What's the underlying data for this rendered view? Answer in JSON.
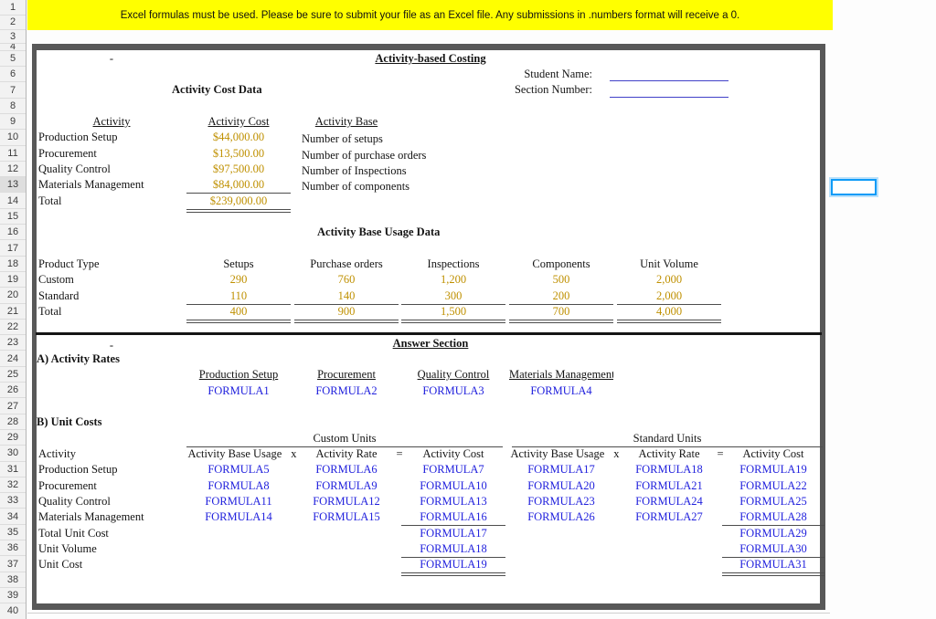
{
  "banner": {
    "text": "Excel formulas must be used. Please be sure to submit your file as an Excel file. Any submissions in .numbers format will receive a 0."
  },
  "row_headers": [
    "1",
    "2",
    "3",
    "4",
    "5",
    "6",
    "7",
    "8",
    "9",
    "10",
    "11",
    "12",
    "13",
    "14",
    "15",
    "16",
    "17",
    "18",
    "19",
    "20",
    "21",
    "22",
    "23",
    "24",
    "25",
    "26",
    "27",
    "28",
    "29",
    "30",
    "31",
    "32",
    "33",
    "34",
    "35",
    "36",
    "37",
    "38",
    "39",
    "40"
  ],
  "selection": {
    "active_row": "13"
  },
  "sheet": {
    "dash_top": "-",
    "title": "Activity-based Costing",
    "student_name_label": "Student Name:",
    "section_number_label": "Section Number:",
    "cost_data": {
      "title": "Activity Cost Data",
      "headers": {
        "activity": "Activity",
        "cost": "Activity Cost",
        "base": "Activity Base"
      },
      "rows": [
        {
          "activity": "Production Setup",
          "cost": "$44,000.00",
          "base": "Number of setups"
        },
        {
          "activity": "Procurement",
          "cost": "$13,500.00",
          "base": "Number of purchase orders"
        },
        {
          "activity": "Quality Control",
          "cost": "$97,500.00",
          "base": "Number of Inspections"
        },
        {
          "activity": "Materials Management",
          "cost": "$84,000.00",
          "base": "Number of components"
        }
      ],
      "total_label": "Total",
      "total_cost": "$239,000.00"
    },
    "usage_data": {
      "title": "Activity Base Usage Data",
      "headers": [
        "Product Type",
        "Setups",
        "Purchase orders",
        "Inspections",
        "Components",
        "Unit Volume"
      ],
      "rows": [
        {
          "label": "Custom",
          "values": [
            "290",
            "760",
            "1,200",
            "500",
            "2,000"
          ]
        },
        {
          "label": "Standard",
          "values": [
            "110",
            "140",
            "300",
            "200",
            "2,000"
          ]
        },
        {
          "label": "Total",
          "values": [
            "400",
            "900",
            "1,500",
            "700",
            "4,000"
          ]
        }
      ]
    },
    "answer": {
      "dash": "-",
      "title": "Answer Section",
      "a_label": "A) Activity Rates",
      "rate_headers": [
        "Production Setup",
        "Procurement",
        "Quality Control",
        "Materials Management"
      ],
      "rate_formulas": [
        "FORMULA1",
        "FORMULA2",
        "FORMULA3",
        "FORMULA4"
      ],
      "b_label": "B) Unit Costs",
      "custom_units_label": "Custom Units",
      "standard_units_label": "Standard Units",
      "col_headers": {
        "activity": "Activity",
        "usage": "Activity Base Usage",
        "x": "x",
        "rate": "Activity Rate",
        "eq": "=",
        "cost": "Activity Cost"
      },
      "unit_rows": [
        {
          "label": "Production Setup",
          "custom": [
            "FORMULA5",
            "FORMULA6",
            "FORMULA7"
          ],
          "standard": [
            "FORMULA17",
            "FORMULA18",
            "FORMULA19"
          ]
        },
        {
          "label": "Procurement",
          "custom": [
            "FORMULA8",
            "FORMULA9",
            "FORMULA10"
          ],
          "standard": [
            "FORMULA20",
            "FORMULA21",
            "FORMULA22"
          ]
        },
        {
          "label": "Quality Control",
          "custom": [
            "FORMULA11",
            "FORMULA12",
            "FORMULA13"
          ],
          "standard": [
            "FORMULA23",
            "FORMULA24",
            "FORMULA25"
          ]
        },
        {
          "label": "Materials Management",
          "custom": [
            "FORMULA14",
            "FORMULA15",
            "FORMULA16"
          ],
          "standard": [
            "FORMULA26",
            "FORMULA27",
            "FORMULA28"
          ]
        }
      ],
      "summary_rows": [
        {
          "label": "Total Unit Cost",
          "custom": "FORMULA17",
          "standard": "FORMULA29"
        },
        {
          "label": "Unit Volume",
          "custom": "FORMULA18",
          "standard": "FORMULA30"
        },
        {
          "label": "Unit Cost",
          "custom": "FORMULA19",
          "standard": "FORMULA31"
        }
      ]
    }
  },
  "colors": {
    "banner_yellow": "#FFFF00",
    "value_gold": "#BF9000",
    "formula_blue": "#2222DD",
    "selection_blue": "#0F9BF7",
    "box_border_gray": "#585858"
  }
}
